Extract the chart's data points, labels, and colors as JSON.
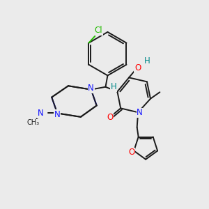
{
  "background_color": "#ebebeb",
  "bond_color": "#1a1a1a",
  "atom_colors": {
    "N": "#1414ff",
    "O": "#ff0000",
    "Cl": "#22bb00",
    "H": "#008888",
    "C": "#1a1a1a"
  },
  "figsize": [
    3.0,
    3.0
  ],
  "dpi": 100,
  "lw": 1.4,
  "fs": 8.5
}
